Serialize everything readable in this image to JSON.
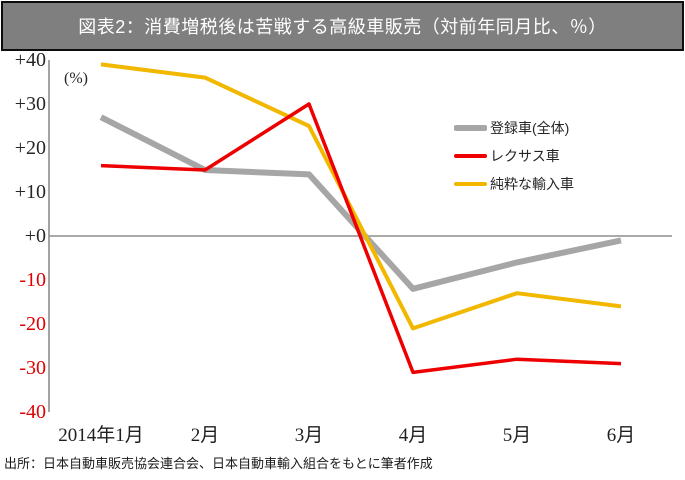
{
  "title": "図表2：消費増税後は苦戦する高級車販売（対前年同月比、％）",
  "source": "出所：日本自動車販売協会連合会、日本自動車輸入組合をもとに筆者作成",
  "chart_data": {
    "type": "line",
    "title": "図表2：消費増税後は苦戦する高級車販売（対前年同月比、％）",
    "ylabel": "(%)",
    "xlabel": "",
    "categories": [
      "2014年1月",
      "2月",
      "3月",
      "4月",
      "5月",
      "6月"
    ],
    "ytick_labels": [
      "+40",
      "+30",
      "+20",
      "+10",
      "+0",
      "-10",
      "-20",
      "-30",
      "-40"
    ],
    "ylim": [
      -40,
      40
    ],
    "grid": "zero-line-only",
    "legend_position": "center-right-overlay",
    "series": [
      {
        "name": "登録車(全体)",
        "color": "#a6a6a6",
        "values": [
          27,
          15,
          14,
          -12,
          -6,
          -1
        ]
      },
      {
        "name": "レクサス車",
        "color": "#ee0000",
        "values": [
          16,
          15,
          30,
          -31,
          -28,
          -29
        ]
      },
      {
        "name": "純粋な輸入車",
        "color": "#f2b800",
        "values": [
          39,
          36,
          25,
          -21,
          -13,
          -16
        ]
      }
    ]
  },
  "colors": {
    "title_bar_bg": "#7f7f7f",
    "title_bar_border": "#0d0d0d",
    "title_text": "#ffffff",
    "axis_line": "#8e8e8e",
    "tick_label": "#262626",
    "tick_label_negative": "#e00000",
    "source_text": "#1a1a1a"
  }
}
